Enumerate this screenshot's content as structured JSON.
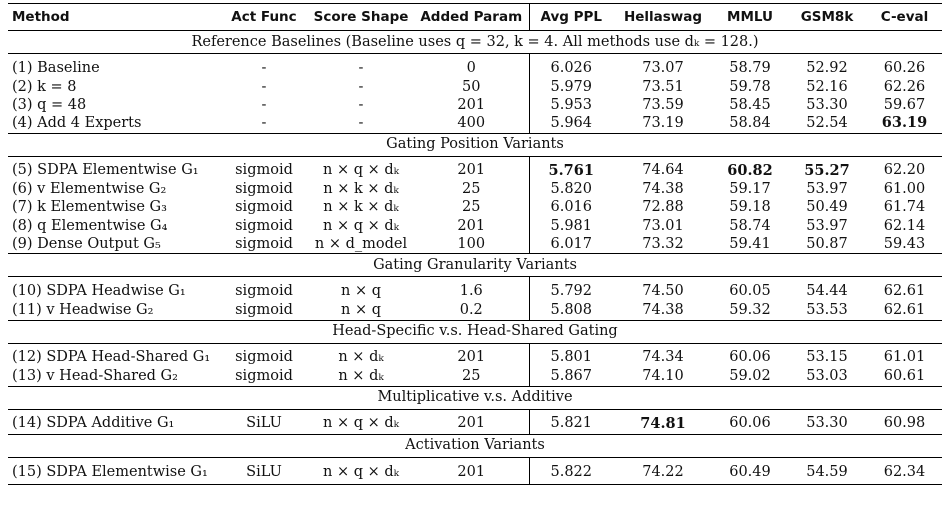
{
  "headers": [
    "Method",
    "Act Func",
    "Score Shape",
    "Added Param",
    "Avg PPL",
    "Hellaswag",
    "MMLU",
    "GSM8k",
    "C-eval"
  ],
  "sections": [
    {
      "title": "Reference Baselines (Baseline uses q = 32, k = 4. All methods use dₖ = 128.)",
      "rows": [
        {
          "method": "(1) Baseline",
          "act": "-",
          "shape": "-",
          "param": "0",
          "ppl": "6.026",
          "hella": "73.07",
          "mmlu": "58.79",
          "gsm": "52.92",
          "ceval": "60.26"
        },
        {
          "method": "(2) k = 8",
          "act": "-",
          "shape": "-",
          "param": "50",
          "ppl": "5.979",
          "hella": "73.51",
          "mmlu": "59.78",
          "gsm": "52.16",
          "ceval": "62.26"
        },
        {
          "method": "(3) q = 48",
          "act": "-",
          "shape": "-",
          "param": "201",
          "ppl": "5.953",
          "hella": "73.59",
          "mmlu": "58.45",
          "gsm": "53.30",
          "ceval": "59.67"
        },
        {
          "method": "(4) Add 4 Experts",
          "act": "-",
          "shape": "-",
          "param": "400",
          "ppl": "5.964",
          "hella": "73.19",
          "mmlu": "58.84",
          "gsm": "52.54",
          "ceval": "63.19",
          "bold": [
            "ceval"
          ]
        }
      ]
    },
    {
      "title": "Gating Position Variants",
      "rows": [
        {
          "method": "(5) SDPA Elementwise G₁",
          "act": "sigmoid",
          "shape": "n × q × dₖ",
          "param": "201",
          "ppl": "5.761",
          "hella": "74.64",
          "mmlu": "60.82",
          "gsm": "55.27",
          "ceval": "62.20",
          "bold": [
            "ppl",
            "mmlu",
            "gsm"
          ]
        },
        {
          "method": "(6) v Elementwise G₂",
          "act": "sigmoid",
          "shape": "n × k × dₖ",
          "param": "25",
          "ppl": "5.820",
          "hella": "74.38",
          "mmlu": "59.17",
          "gsm": "53.97",
          "ceval": "61.00"
        },
        {
          "method": "(7) k Elementwise G₃",
          "act": "sigmoid",
          "shape": "n × k × dₖ",
          "param": "25",
          "ppl": "6.016",
          "hella": "72.88",
          "mmlu": "59.18",
          "gsm": "50.49",
          "ceval": "61.74"
        },
        {
          "method": "(8) q Elementwise G₄",
          "act": "sigmoid",
          "shape": "n × q × dₖ",
          "param": "201",
          "ppl": "5.981",
          "hella": "73.01",
          "mmlu": "58.74",
          "gsm": "53.97",
          "ceval": "62.14"
        },
        {
          "method": "(9) Dense Output G₅",
          "act": "sigmoid",
          "shape": "n × d_model",
          "param": "100",
          "ppl": "6.017",
          "hella": "73.32",
          "mmlu": "59.41",
          "gsm": "50.87",
          "ceval": "59.43"
        }
      ]
    },
    {
      "title": "Gating Granularity Variants",
      "rows": [
        {
          "method": "(10) SDPA Headwise G₁",
          "act": "sigmoid",
          "shape": "n × q",
          "param": "1.6",
          "ppl": "5.792",
          "hella": "74.50",
          "mmlu": "60.05",
          "gsm": "54.44",
          "ceval": "62.61"
        },
        {
          "method": "(11) v Headwise G₂",
          "act": "sigmoid",
          "shape": "n × q",
          "param": "0.2",
          "ppl": "5.808",
          "hella": "74.38",
          "mmlu": "59.32",
          "gsm": "53.53",
          "ceval": "62.61"
        }
      ]
    },
    {
      "title": "Head-Specific v.s. Head-Shared Gating",
      "rows": [
        {
          "method": "(12) SDPA Head-Shared G₁",
          "act": "sigmoid",
          "shape": "n × dₖ",
          "param": "201",
          "ppl": "5.801",
          "hella": "74.34",
          "mmlu": "60.06",
          "gsm": "53.15",
          "ceval": "61.01"
        },
        {
          "method": "(13) v Head-Shared G₂",
          "act": "sigmoid",
          "shape": "n × dₖ",
          "param": "25",
          "ppl": "5.867",
          "hella": "74.10",
          "mmlu": "59.02",
          "gsm": "53.03",
          "ceval": "60.61"
        }
      ]
    },
    {
      "title": "Multiplicative v.s. Additive",
      "rows": [
        {
          "method": "(14) SDPA Additive G₁",
          "act": "SiLU",
          "shape": "n × q × dₖ",
          "param": "201",
          "ppl": "5.821",
          "hella": "74.81",
          "mmlu": "60.06",
          "gsm": "53.30",
          "ceval": "60.98",
          "bold": [
            "hella"
          ]
        }
      ]
    },
    {
      "title": "Activation Variants",
      "rows": [
        {
          "method": "(15) SDPA Elementwise G₁",
          "act": "SiLU",
          "shape": "n × q × dₖ",
          "param": "201",
          "ppl": "5.822",
          "hella": "74.22",
          "mmlu": "60.49",
          "gsm": "54.59",
          "ceval": "62.34"
        }
      ]
    }
  ]
}
